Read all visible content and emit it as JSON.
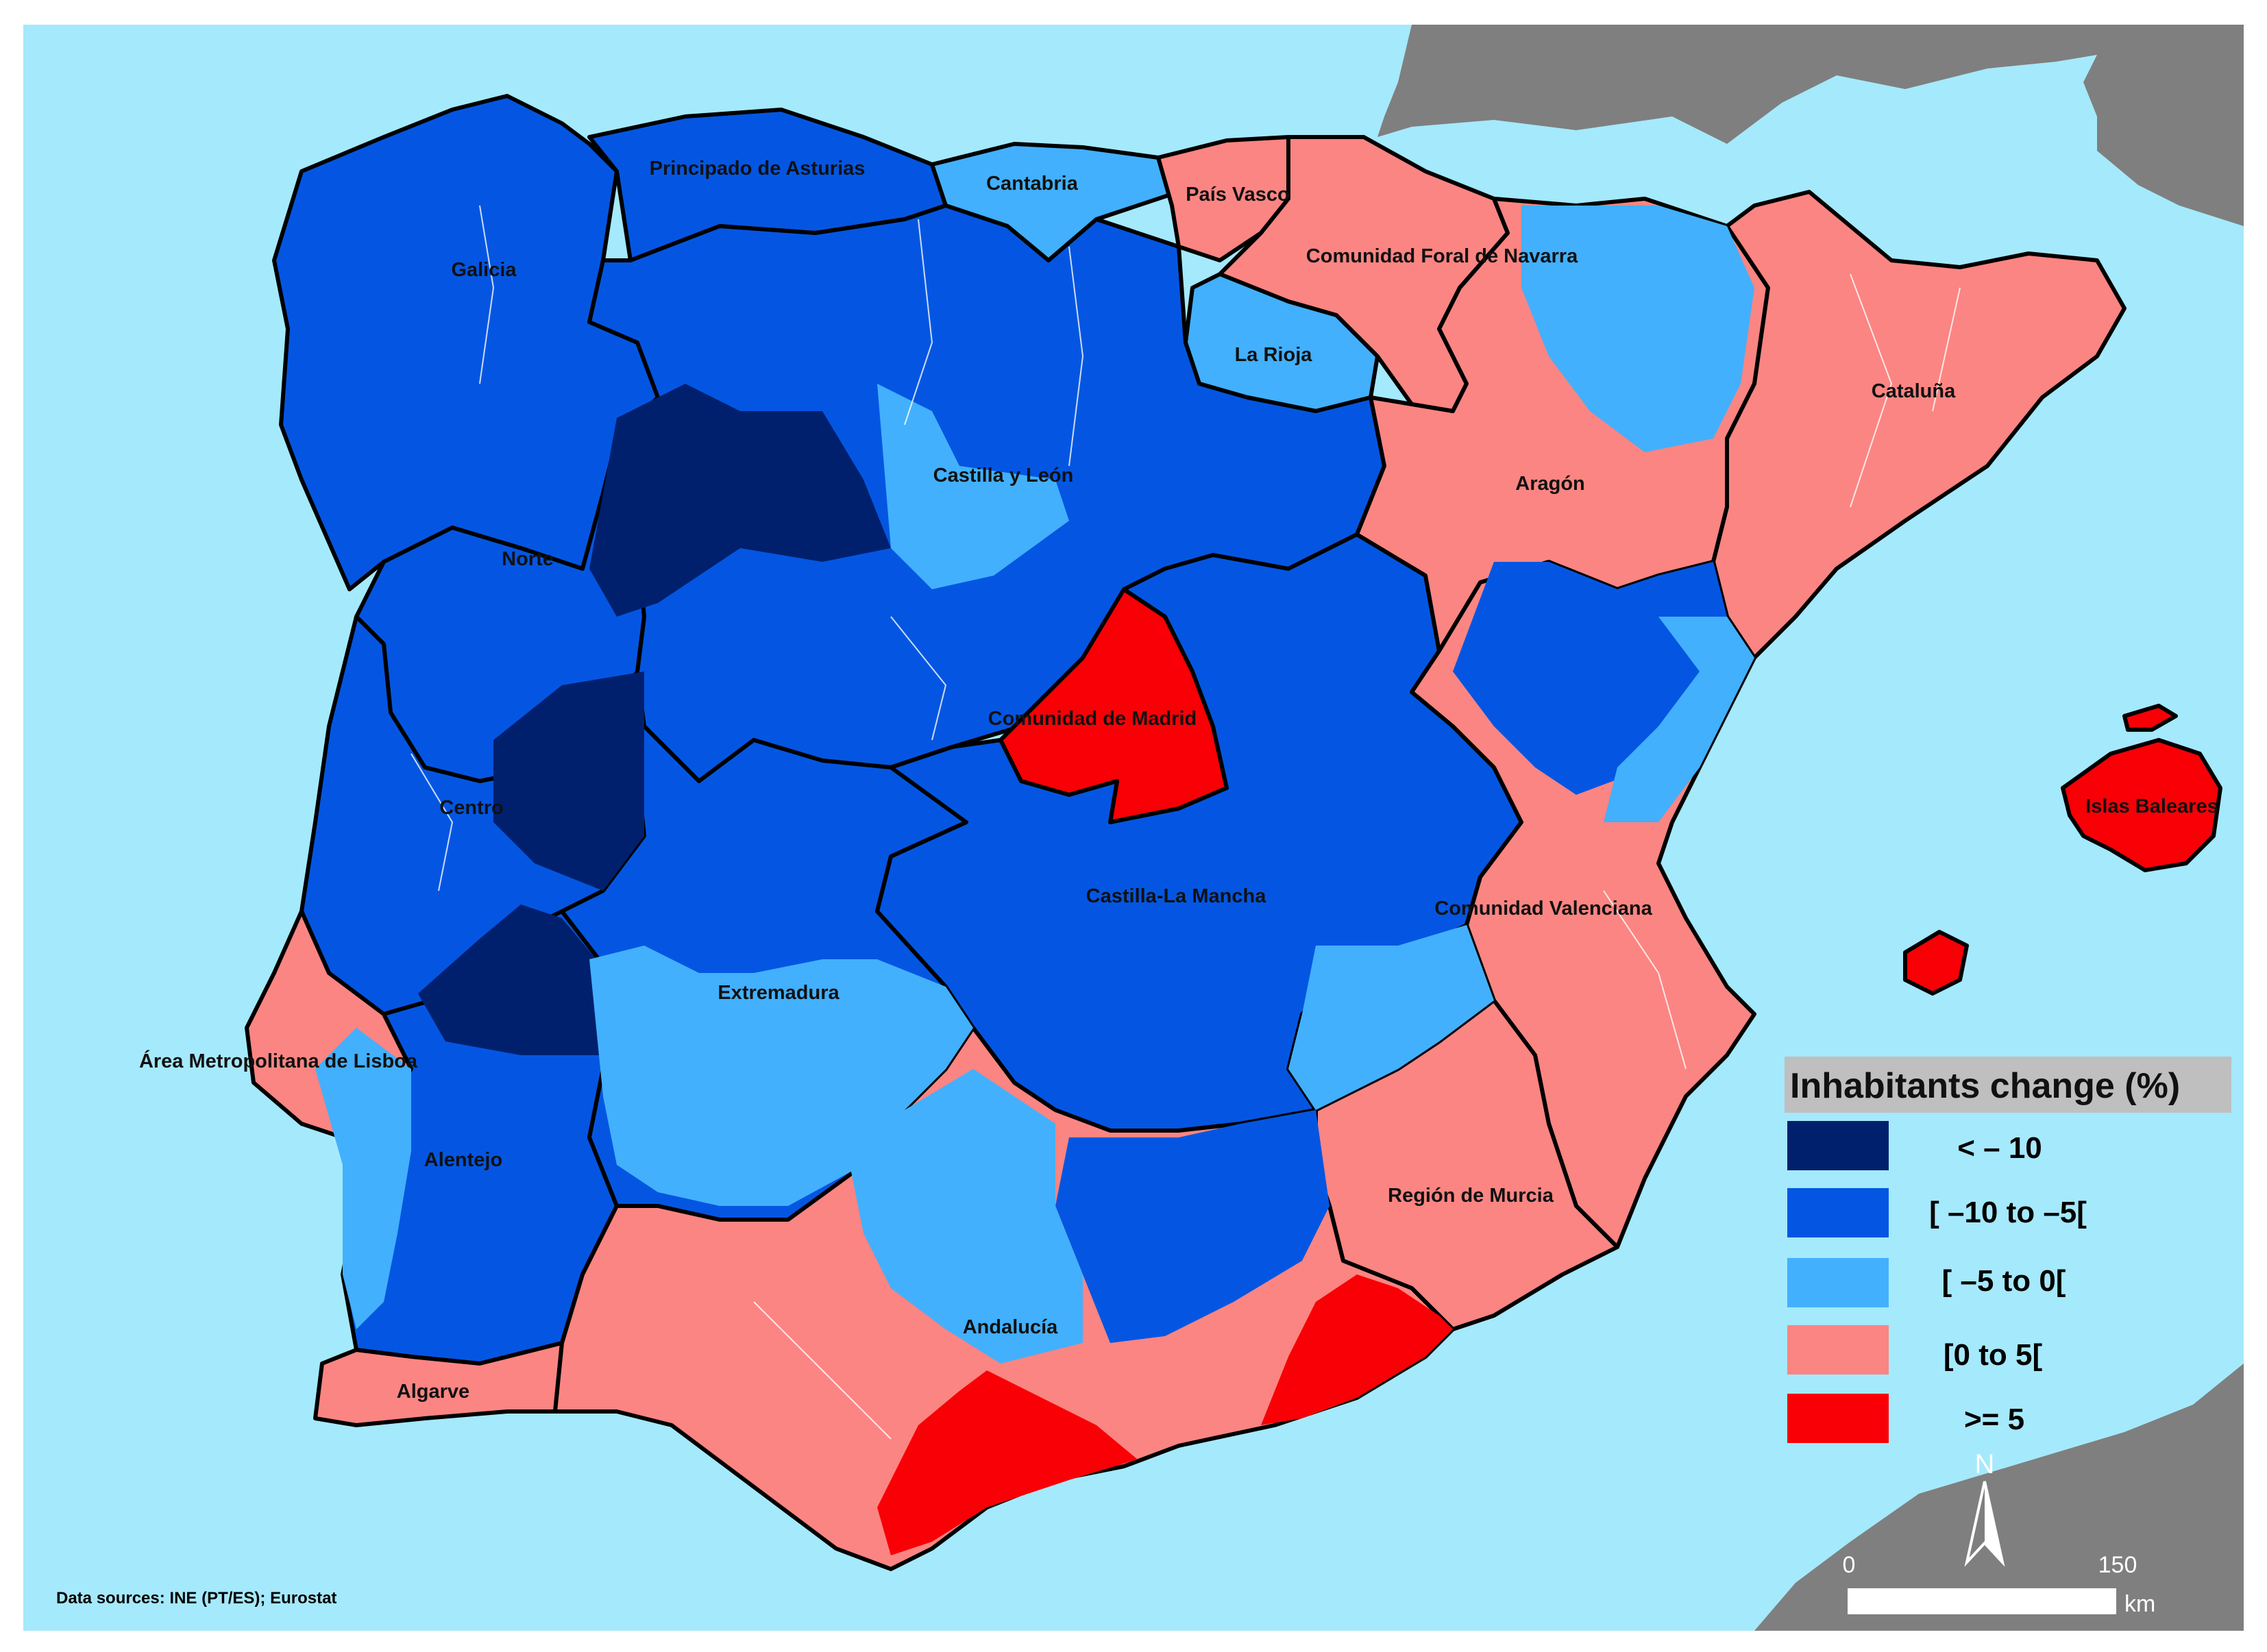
{
  "legend": {
    "title": "Inhabitants change (%)",
    "classes": [
      {
        "label": "< – 10",
        "color": "#00206e"
      },
      {
        "label": "[ –10 to –5[",
        "color": "#0456e2"
      },
      {
        "label": "[ –5 to 0[",
        "color": "#42b0fd"
      },
      {
        "label": "[0 to 5[",
        "color": "#fb8582"
      },
      {
        "label": ">= 5",
        "color": "#f80006"
      }
    ]
  },
  "regions": [
    {
      "name": "Principado de Asturias",
      "class": 1
    },
    {
      "name": "Cantabria",
      "class": 2
    },
    {
      "name": "País Vasco",
      "class": 3
    },
    {
      "name": "Comunidad Foral de Navarra",
      "class": 3
    },
    {
      "name": "Galicia",
      "class": 1
    },
    {
      "name": "La Rioja",
      "class": 2
    },
    {
      "name": "Cataluña",
      "class": 3
    },
    {
      "name": "Castilla y León",
      "class": 1
    },
    {
      "name": "Aragón",
      "class": 3
    },
    {
      "name": "Norte",
      "class": 1
    },
    {
      "name": "Comunidad de Madrid",
      "class": 4
    },
    {
      "name": "Centro",
      "class": 1
    },
    {
      "name": "Islas Baleares",
      "class": 4
    },
    {
      "name": "Castilla-La Mancha",
      "class": 1
    },
    {
      "name": "Comunidad Valenciana",
      "class": 3
    },
    {
      "name": "Extremadura",
      "class": 1
    },
    {
      "name": "Área Metropolitana de Lisboa",
      "class": 3
    },
    {
      "name": "Alentejo",
      "class": 1
    },
    {
      "name": "Región de Murcia",
      "class": 3
    },
    {
      "name": "Andalucía",
      "class": 3
    },
    {
      "name": "Algarve",
      "class": 3
    }
  ],
  "source": "Data sources: INE (PT/ES); Eurostat",
  "scale_bar": {
    "start": "0",
    "end": "150",
    "unit": "km"
  },
  "north_arrow": "N",
  "colors": {
    "sea": "#a5e9fc",
    "foreign_land": "#7f7f7f",
    "legend_title_bg": "#bfbfbf"
  }
}
